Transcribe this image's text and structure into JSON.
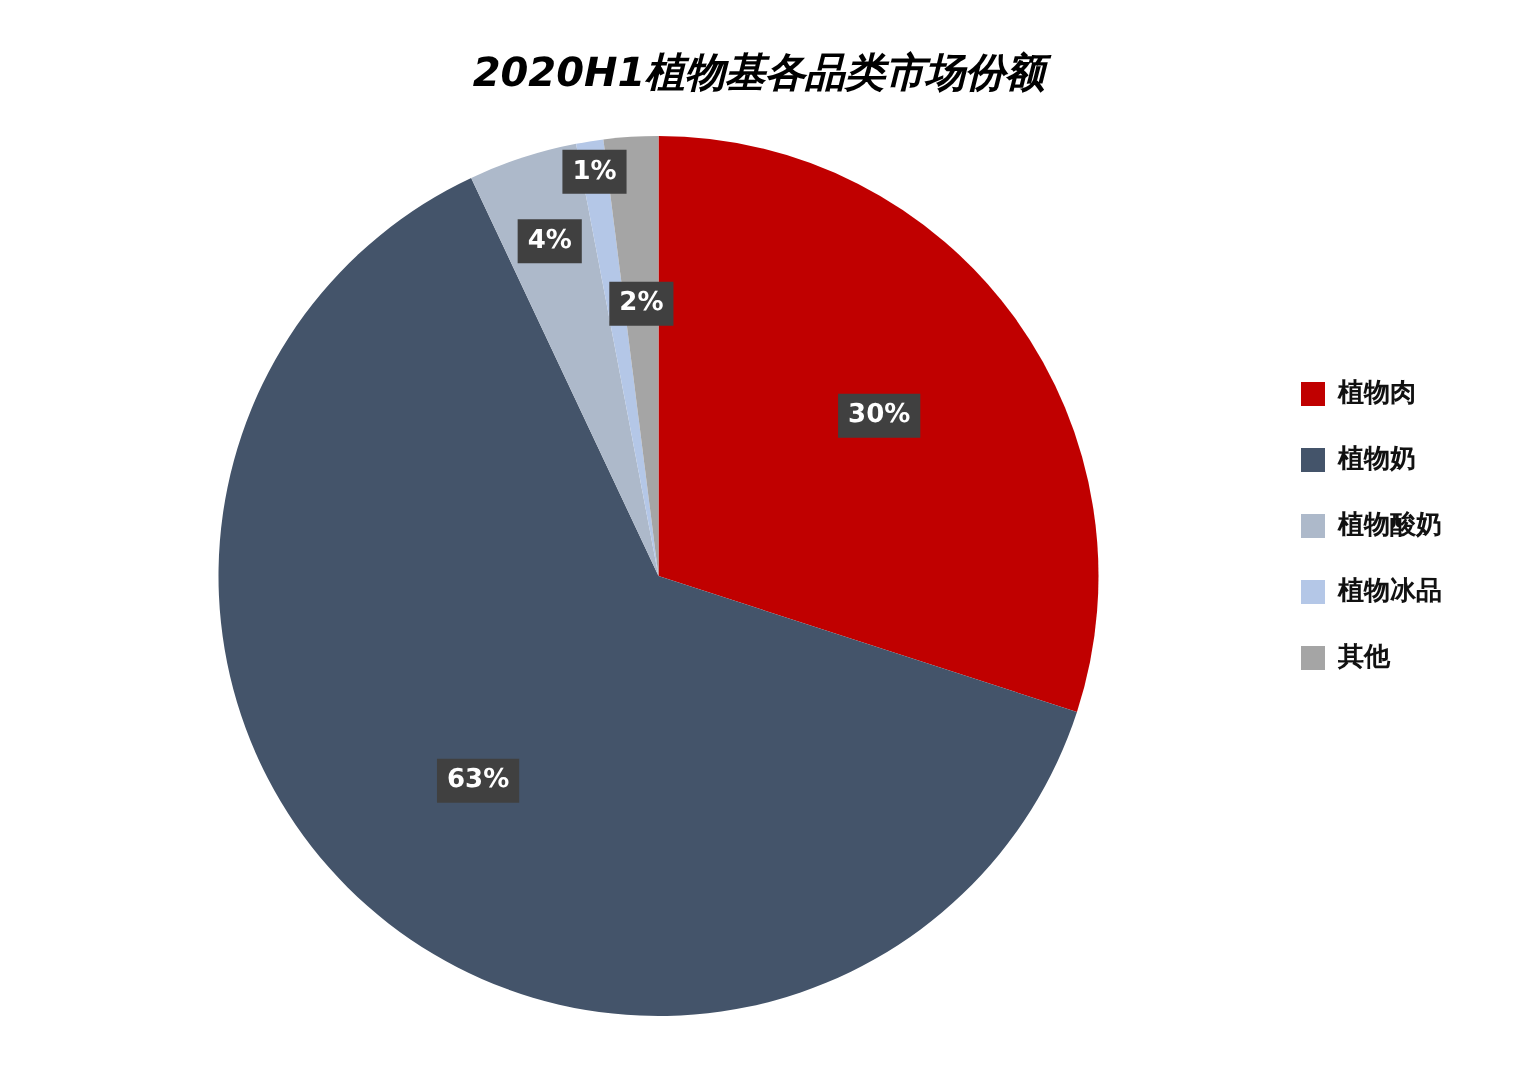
{
  "chart_data": {
    "type": "pie",
    "title": "2020H1植物基各品类市场份额",
    "categories": [
      "植物肉",
      "植物奶",
      "植物酸奶",
      "植物冰品",
      "其他"
    ],
    "values": [
      30,
      63,
      4,
      1,
      2
    ],
    "colors": [
      "#c00000",
      "#44546a",
      "#adb9ca",
      "#b4c7e7",
      "#a5a5a5"
    ],
    "value_labels": [
      "30%",
      "63%",
      "4%",
      "1%",
      "2%"
    ],
    "legend": "right"
  }
}
